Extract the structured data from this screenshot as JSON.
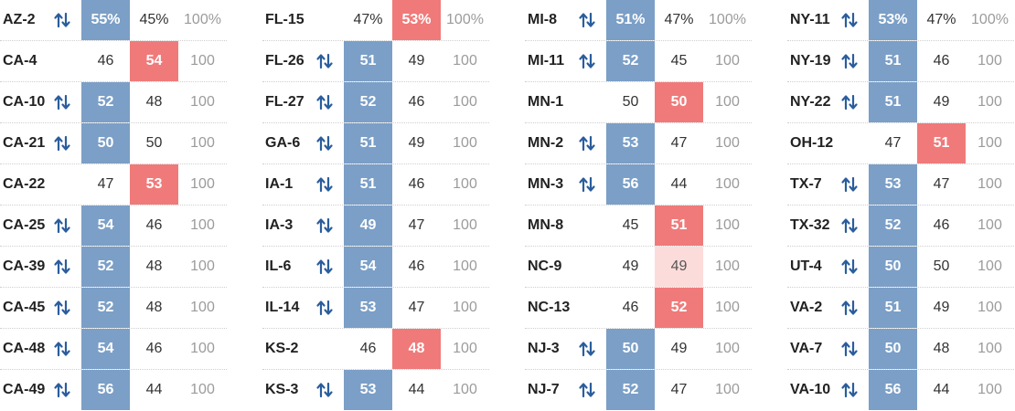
{
  "colors": {
    "dem": "#7b9fc7",
    "rep": "#f07a7a",
    "tie": "#fcdcda",
    "flip_icon": "#2a5d9c"
  },
  "flip_icon_name": "swap-arrows-icon",
  "panels": [
    {
      "rows": [
        {
          "district": "AZ-2",
          "flip": true,
          "dem": "55%",
          "rep": "45%",
          "total": "100%",
          "lead": "dem"
        },
        {
          "district": "CA-4",
          "flip": false,
          "dem": "46",
          "rep": "54",
          "total": "100",
          "lead": "rep"
        },
        {
          "district": "CA-10",
          "flip": true,
          "dem": "52",
          "rep": "48",
          "total": "100",
          "lead": "dem"
        },
        {
          "district": "CA-21",
          "flip": true,
          "dem": "50",
          "rep": "50",
          "total": "100",
          "lead": "dem"
        },
        {
          "district": "CA-22",
          "flip": false,
          "dem": "47",
          "rep": "53",
          "total": "100",
          "lead": "rep"
        },
        {
          "district": "CA-25",
          "flip": true,
          "dem": "54",
          "rep": "46",
          "total": "100",
          "lead": "dem"
        },
        {
          "district": "CA-39",
          "flip": true,
          "dem": "52",
          "rep": "48",
          "total": "100",
          "lead": "dem"
        },
        {
          "district": "CA-45",
          "flip": true,
          "dem": "52",
          "rep": "48",
          "total": "100",
          "lead": "dem"
        },
        {
          "district": "CA-48",
          "flip": true,
          "dem": "54",
          "rep": "46",
          "total": "100",
          "lead": "dem"
        },
        {
          "district": "CA-49",
          "flip": true,
          "dem": "56",
          "rep": "44",
          "total": "100",
          "lead": "dem"
        }
      ]
    },
    {
      "rows": [
        {
          "district": "FL-15",
          "flip": false,
          "dem": "47%",
          "rep": "53%",
          "total": "100%",
          "lead": "rep"
        },
        {
          "district": "FL-26",
          "flip": true,
          "dem": "51",
          "rep": "49",
          "total": "100",
          "lead": "dem"
        },
        {
          "district": "FL-27",
          "flip": true,
          "dem": "52",
          "rep": "46",
          "total": "100",
          "lead": "dem"
        },
        {
          "district": "GA-6",
          "flip": true,
          "dem": "51",
          "rep": "49",
          "total": "100",
          "lead": "dem"
        },
        {
          "district": "IA-1",
          "flip": true,
          "dem": "51",
          "rep": "46",
          "total": "100",
          "lead": "dem"
        },
        {
          "district": "IA-3",
          "flip": true,
          "dem": "49",
          "rep": "47",
          "total": "100",
          "lead": "dem"
        },
        {
          "district": "IL-6",
          "flip": true,
          "dem": "54",
          "rep": "46",
          "total": "100",
          "lead": "dem"
        },
        {
          "district": "IL-14",
          "flip": true,
          "dem": "53",
          "rep": "47",
          "total": "100",
          "lead": "dem"
        },
        {
          "district": "KS-2",
          "flip": false,
          "dem": "46",
          "rep": "48",
          "total": "100",
          "lead": "rep"
        },
        {
          "district": "KS-3",
          "flip": true,
          "dem": "53",
          "rep": "44",
          "total": "100",
          "lead": "dem"
        }
      ]
    },
    {
      "rows": [
        {
          "district": "MI-8",
          "flip": true,
          "dem": "51%",
          "rep": "47%",
          "total": "100%",
          "lead": "dem"
        },
        {
          "district": "MI-11",
          "flip": true,
          "dem": "52",
          "rep": "45",
          "total": "100",
          "lead": "dem"
        },
        {
          "district": "MN-1",
          "flip": false,
          "dem": "50",
          "rep": "50",
          "total": "100",
          "lead": "rep"
        },
        {
          "district": "MN-2",
          "flip": true,
          "dem": "53",
          "rep": "47",
          "total": "100",
          "lead": "dem"
        },
        {
          "district": "MN-3",
          "flip": true,
          "dem": "56",
          "rep": "44",
          "total": "100",
          "lead": "dem"
        },
        {
          "district": "MN-8",
          "flip": false,
          "dem": "45",
          "rep": "51",
          "total": "100",
          "lead": "rep"
        },
        {
          "district": "NC-9",
          "flip": false,
          "dem": "49",
          "rep": "49",
          "total": "100",
          "lead": "tie"
        },
        {
          "district": "NC-13",
          "flip": false,
          "dem": "46",
          "rep": "52",
          "total": "100",
          "lead": "rep"
        },
        {
          "district": "NJ-3",
          "flip": true,
          "dem": "50",
          "rep": "49",
          "total": "100",
          "lead": "dem"
        },
        {
          "district": "NJ-7",
          "flip": true,
          "dem": "52",
          "rep": "47",
          "total": "100",
          "lead": "dem"
        }
      ]
    },
    {
      "rows": [
        {
          "district": "NY-11",
          "flip": true,
          "dem": "53%",
          "rep": "47%",
          "total": "100%",
          "lead": "dem"
        },
        {
          "district": "NY-19",
          "flip": true,
          "dem": "51",
          "rep": "46",
          "total": "100",
          "lead": "dem"
        },
        {
          "district": "NY-22",
          "flip": true,
          "dem": "51",
          "rep": "49",
          "total": "100",
          "lead": "dem"
        },
        {
          "district": "OH-12",
          "flip": false,
          "dem": "47",
          "rep": "51",
          "total": "100",
          "lead": "rep"
        },
        {
          "district": "TX-7",
          "flip": true,
          "dem": "53",
          "rep": "47",
          "total": "100",
          "lead": "dem"
        },
        {
          "district": "TX-32",
          "flip": true,
          "dem": "52",
          "rep": "46",
          "total": "100",
          "lead": "dem"
        },
        {
          "district": "UT-4",
          "flip": true,
          "dem": "50",
          "rep": "50",
          "total": "100",
          "lead": "dem"
        },
        {
          "district": "VA-2",
          "flip": true,
          "dem": "51",
          "rep": "49",
          "total": "100",
          "lead": "dem"
        },
        {
          "district": "VA-7",
          "flip": true,
          "dem": "50",
          "rep": "48",
          "total": "100",
          "lead": "dem"
        },
        {
          "district": "VA-10",
          "flip": true,
          "dem": "56",
          "rep": "44",
          "total": "100",
          "lead": "dem"
        }
      ]
    }
  ]
}
